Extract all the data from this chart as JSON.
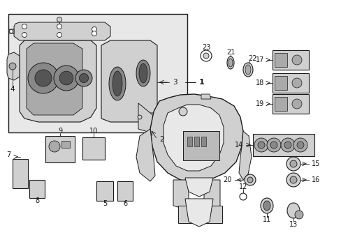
{
  "bg": "#ffffff",
  "lc": "#1a1a1a",
  "fc_light": "#e8e8e8",
  "fc_mid": "#d0d0d0",
  "fc_dark": "#b0b0b0",
  "fc_box": "#d8d8d8",
  "figsize": [
    4.89,
    3.6
  ],
  "dpi": 100,
  "xlim": [
    0,
    489
  ],
  "ylim": [
    0,
    360
  ]
}
